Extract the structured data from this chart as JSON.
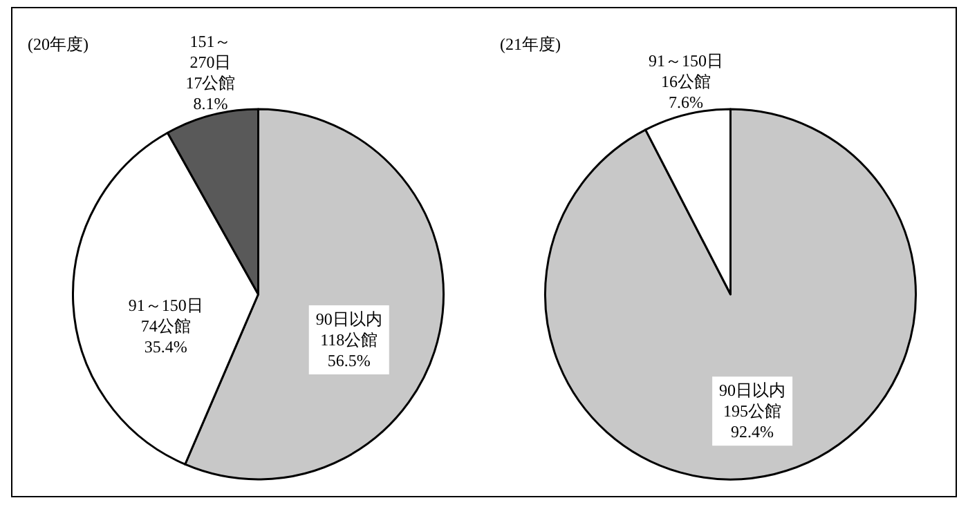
{
  "chart_data": [
    {
      "type": "pie",
      "title": "(20年度)",
      "categories": [
        "90日以内",
        "91～150日",
        "151～270日"
      ],
      "values": [
        118,
        74,
        17
      ],
      "value_labels": [
        "118公館\n56.5%",
        "74公館\n35.4%",
        "17公館\n8.1%"
      ],
      "colors": [
        "#c8c8c8",
        "#ffffff",
        "#595959"
      ]
    },
    {
      "type": "pie",
      "title": "(21年度)",
      "categories": [
        "90日以内",
        "91～150日"
      ],
      "values": [
        195,
        16
      ],
      "value_labels": [
        "195公館\n92.4%",
        "16公館\n7.6%"
      ],
      "colors": [
        "#c8c8c8",
        "#ffffff"
      ]
    }
  ]
}
